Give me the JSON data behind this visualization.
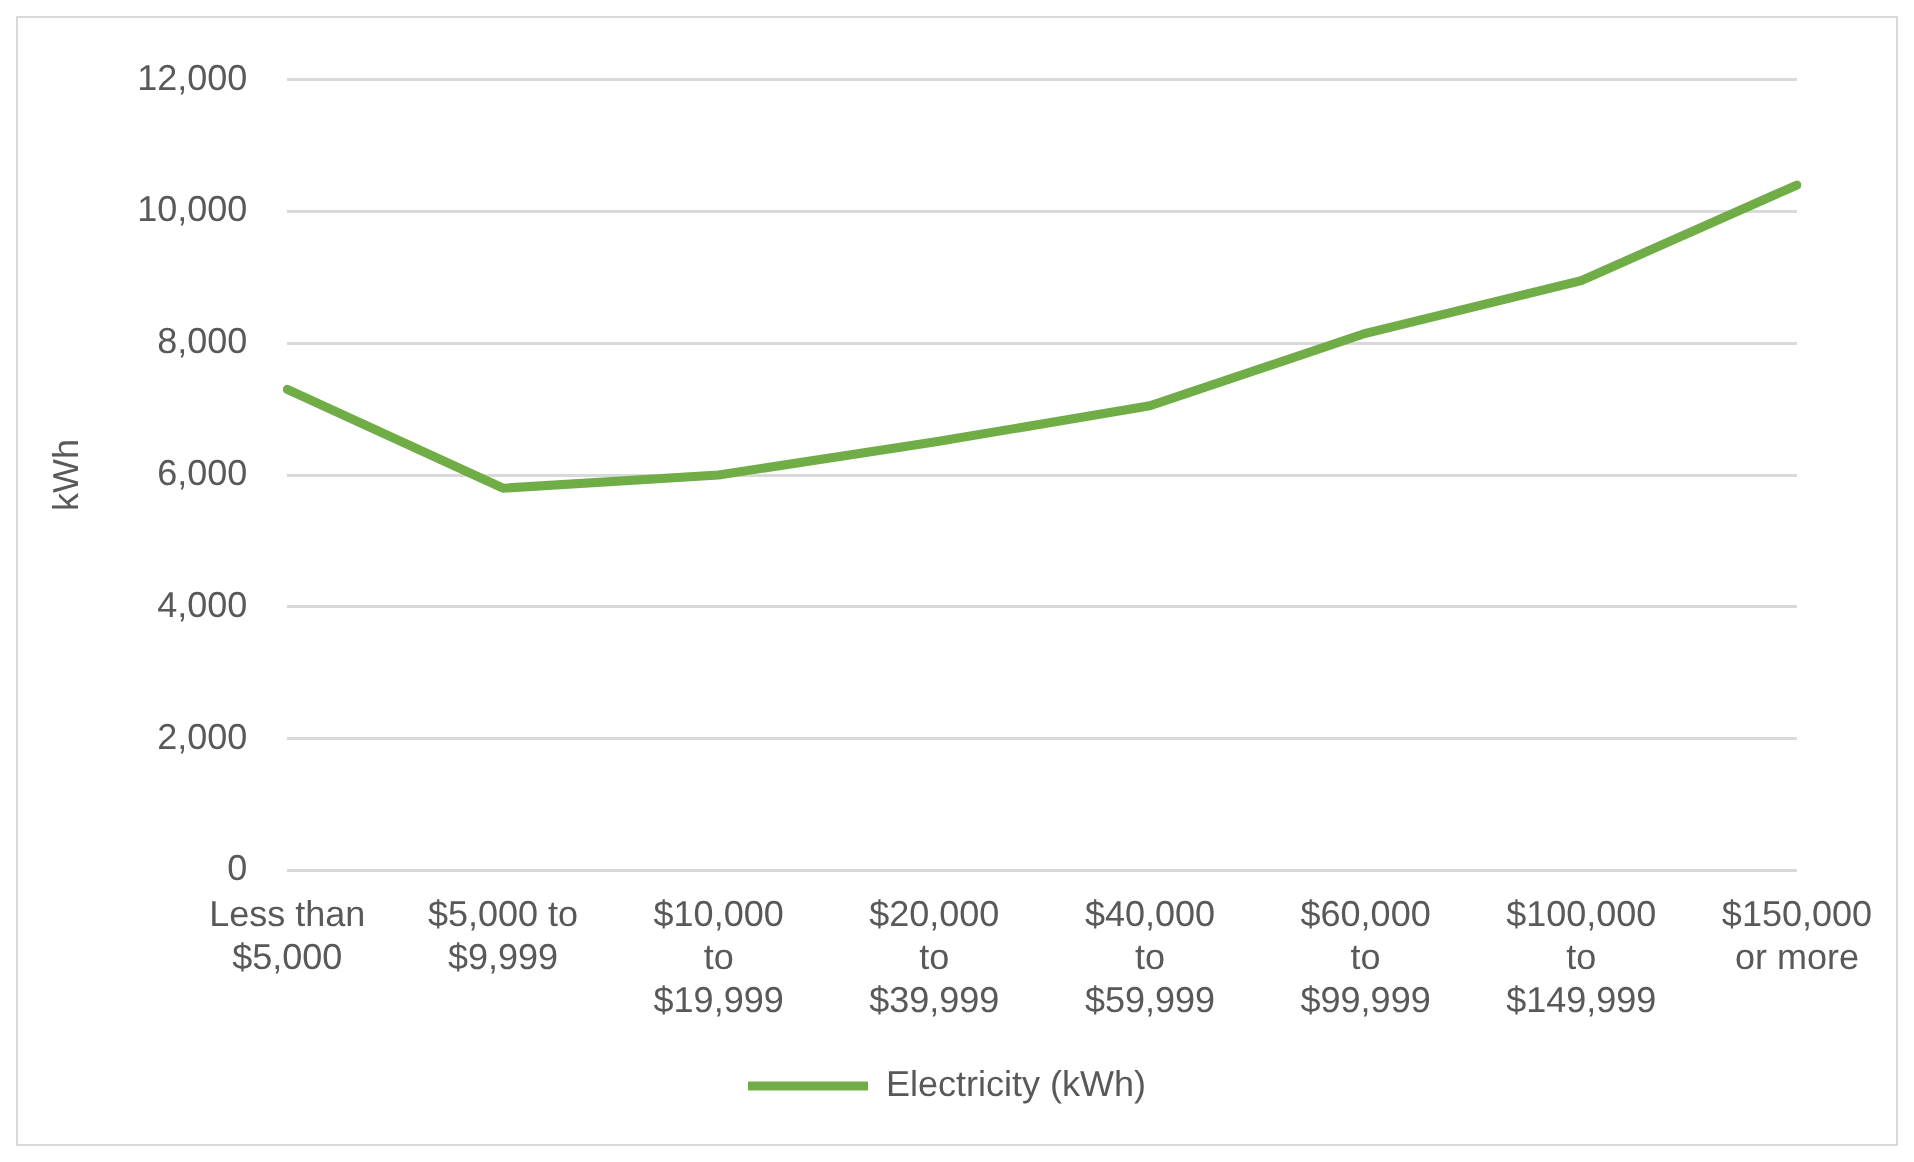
{
  "chart_data": {
    "type": "line",
    "ylabel": "kWh",
    "categories": [
      "Less than $5,000",
      "$5,000 to $9,999",
      "$10,000 to $19,999",
      "$20,000 to $39,999",
      "$40,000 to $59,999",
      "$60,000 to $99,999",
      "$100,000 to $149,999",
      "$150,000 or more"
    ],
    "series": [
      {
        "name": "Electricity (kWh)",
        "color": "#70ad47",
        "values": [
          7300,
          5800,
          6000,
          6500,
          7050,
          8150,
          8950,
          10400
        ]
      }
    ],
    "ylim": [
      0,
      12000
    ],
    "yticks": [
      0,
      {
        "value": 2000,
        "label": "2,000"
      },
      {
        "value": 4000,
        "label": "4,000"
      },
      {
        "value": 6000,
        "label": "6,000"
      },
      {
        "value": 8000,
        "label": "8,000"
      },
      {
        "value": 10000,
        "label": "10,000"
      },
      {
        "value": 12000,
        "label": "12,000"
      }
    ],
    "grid": "y",
    "legend": "bottom",
    "marker": "none",
    "line_style": "solid"
  }
}
